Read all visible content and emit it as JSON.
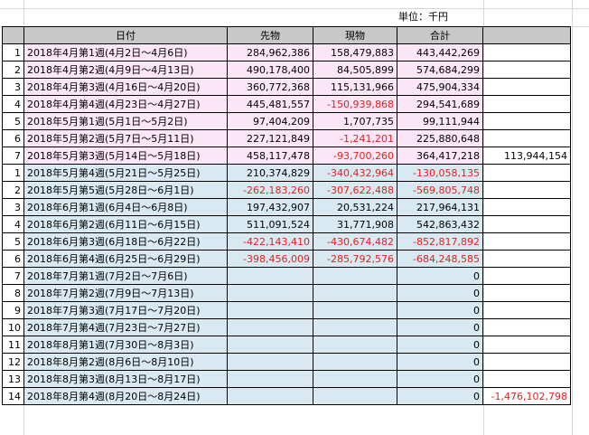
{
  "unit_label": "単位：千円",
  "headers": {
    "date": "日付",
    "futures": "先物",
    "spot": "現物",
    "total": "合計"
  },
  "colors": {
    "header_bg": "#c8c8c8",
    "pink_bg": "#fbe6f7",
    "blue_bg": "#d8e9f2",
    "negative": "#e0231c"
  },
  "rows": [
    {
      "no": "1",
      "date": "2018年4月第1週(4月2日～4月6日)",
      "futures": "284,962,386",
      "spot": "158,479,883",
      "total": "443,442,269",
      "side": "",
      "group": "pink"
    },
    {
      "no": "2",
      "date": "2018年4月第2週(4月9日～4月13日)",
      "futures": "490,178,400",
      "spot": "84,505,899",
      "total": "574,684,299",
      "side": "",
      "group": "pink"
    },
    {
      "no": "3",
      "date": "2018年4月第3週(4月16日～4月20日)",
      "futures": "360,772,368",
      "spot": "115,131,966",
      "total": "475,904,334",
      "side": "",
      "group": "pink"
    },
    {
      "no": "4",
      "date": "2018年4月第4週(4月23日～4月27日)",
      "futures": "445,481,557",
      "spot": "-150,939,868",
      "total": "294,541,689",
      "side": "",
      "group": "pink"
    },
    {
      "no": "5",
      "date": "2018年5月第1週(5月1日～5月2日)",
      "futures": "97,404,209",
      "spot": "1,707,735",
      "total": "99,111,944",
      "side": "",
      "group": "pink"
    },
    {
      "no": "6",
      "date": "2018年5月第2週(5月7日～5月11日)",
      "futures": "227,121,849",
      "spot": "-1,241,201",
      "total": "225,880,648",
      "side": "",
      "group": "pink"
    },
    {
      "no": "7",
      "date": "2018年5月第3週(5月14日～5月18日)",
      "futures": "458,117,478",
      "spot": "-93,700,260",
      "total": "364,417,218",
      "side": "113,944,154",
      "group": "pink"
    },
    {
      "no": "1",
      "date": "2018年5月第4週(5月21日～5月25日)",
      "futures": "210,374,829",
      "spot": "-340,432,964",
      "total": "-130,058,135",
      "side": "",
      "group": "blue"
    },
    {
      "no": "2",
      "date": "2018年5月第5週(5月28日～6月1日)",
      "futures": "-262,183,260",
      "spot": "-307,622,488",
      "total": "-569,805,748",
      "side": "",
      "group": "blue"
    },
    {
      "no": "3",
      "date": "2018年6月第1週(6月4日～6月8日)",
      "futures": "197,432,907",
      "spot": "20,531,224",
      "total": "217,964,131",
      "side": "",
      "group": "blue"
    },
    {
      "no": "4",
      "date": "2018年6月第2週(6月11日～6月15日)",
      "futures": "511,091,524",
      "spot": "31,771,908",
      "total": "542,863,432",
      "side": "",
      "group": "blue"
    },
    {
      "no": "5",
      "date": "2018年6月第3週(6月18日～6月22日)",
      "futures": "-422,143,410",
      "spot": "-430,674,482",
      "total": "-852,817,892",
      "side": "",
      "group": "blue"
    },
    {
      "no": "6",
      "date": "2018年6月第4週(6月25日～6月29日)",
      "futures": "-398,456,009",
      "spot": "-285,792,576",
      "total": "-684,248,585",
      "side": "",
      "group": "blue"
    },
    {
      "no": "7",
      "date": "2018年7月第1週(7月2日～7月6日)",
      "futures": "",
      "spot": "",
      "total": "0",
      "side": "",
      "group": "blue"
    },
    {
      "no": "8",
      "date": "2018年7月第2週(7月9日～7月13日)",
      "futures": "",
      "spot": "",
      "total": "0",
      "side": "",
      "group": "blue"
    },
    {
      "no": "9",
      "date": "2018年7月第3週(7月17日～7月20日)",
      "futures": "",
      "spot": "",
      "total": "0",
      "side": "",
      "group": "blue"
    },
    {
      "no": "10",
      "date": "2018年7月第4週(7月23日～7月27日)",
      "futures": "",
      "spot": "",
      "total": "0",
      "side": "",
      "group": "blue"
    },
    {
      "no": "11",
      "date": "2018年8月第1週(7月30日～8月3日)",
      "futures": "",
      "spot": "",
      "total": "0",
      "side": "",
      "group": "blue"
    },
    {
      "no": "12",
      "date": "2018年8月第2週(8月6日～8月10日)",
      "futures": "",
      "spot": "",
      "total": "0",
      "side": "",
      "group": "blue"
    },
    {
      "no": "13",
      "date": "2018年8月第3週(8月13日～8月17日)",
      "futures": "",
      "spot": "",
      "total": "0",
      "side": "",
      "group": "blue"
    },
    {
      "no": "14",
      "date": "2018年8月第4週(8月20日～8月24日)",
      "futures": "",
      "spot": "",
      "total": "0",
      "side": "-1,476,102,798",
      "group": "blue"
    }
  ]
}
